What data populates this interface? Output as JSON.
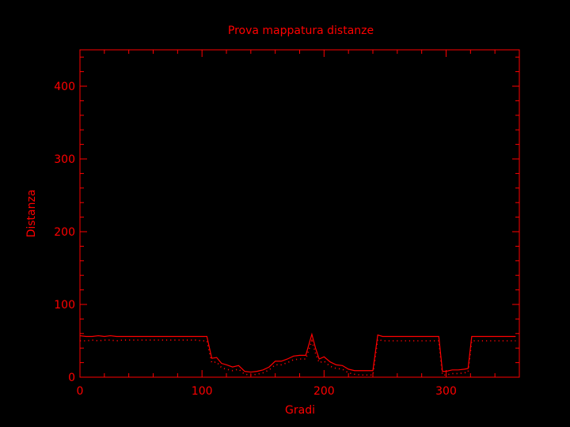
{
  "chart_data": {
    "type": "line",
    "title": "Prova mappatura distanze",
    "xlabel": "Gradi",
    "ylabel": "Distanza",
    "xlim": [
      0,
      360
    ],
    "ylim": [
      0,
      450
    ],
    "xticks": [
      0,
      100,
      200,
      300
    ],
    "yticks": [
      0,
      100,
      200,
      300,
      400
    ],
    "grid": false,
    "color": "#ff0000",
    "series": [
      {
        "style": "solid",
        "x": [
          0,
          5,
          10,
          15,
          20,
          25,
          30,
          35,
          40,
          45,
          50,
          55,
          60,
          65,
          70,
          75,
          80,
          85,
          90,
          95,
          100,
          104,
          108,
          112,
          116,
          120,
          125,
          130,
          135,
          140,
          145,
          150,
          155,
          160,
          165,
          170,
          175,
          180,
          185,
          190,
          193,
          196,
          200,
          205,
          210,
          215,
          220,
          225,
          230,
          235,
          240,
          244,
          248,
          252,
          256,
          260,
          270,
          280,
          290,
          294,
          297,
          300,
          305,
          310,
          315,
          318,
          321,
          325,
          330,
          340,
          350,
          357
        ],
        "y": [
          57,
          56,
          56,
          57,
          56,
          57,
          56,
          56,
          56,
          56,
          56,
          56,
          56,
          56,
          56,
          56,
          56,
          56,
          56,
          56,
          56,
          56,
          26,
          27,
          19,
          17,
          14,
          16,
          8,
          7,
          8,
          10,
          14,
          22,
          22,
          25,
          29,
          30,
          30,
          59,
          40,
          25,
          28,
          21,
          17,
          16,
          11,
          9,
          9,
          9,
          9,
          58,
          56,
          56,
          56,
          56,
          56,
          56,
          56,
          56,
          8,
          8,
          10,
          10,
          11,
          12,
          56,
          56,
          56,
          56,
          56,
          56
        ]
      },
      {
        "style": "dotted",
        "x": [
          0,
          5,
          10,
          15,
          20,
          25,
          30,
          35,
          40,
          45,
          50,
          55,
          60,
          65,
          70,
          75,
          80,
          85,
          90,
          95,
          100,
          104,
          108,
          112,
          116,
          120,
          125,
          130,
          135,
          140,
          145,
          150,
          155,
          160,
          165,
          170,
          175,
          180,
          185,
          190,
          193,
          196,
          200,
          205,
          210,
          215,
          220,
          225,
          230,
          235,
          240,
          244,
          248,
          252,
          256,
          260,
          270,
          280,
          290,
          294,
          297,
          300,
          305,
          310,
          315,
          318,
          321,
          325,
          330,
          340,
          350,
          357
        ],
        "y": [
          50,
          50,
          51,
          50,
          51,
          51,
          50,
          51,
          51,
          51,
          51,
          51,
          51,
          51,
          51,
          51,
          51,
          51,
          51,
          51,
          50,
          50,
          20,
          21,
          13,
          11,
          9,
          11,
          4,
          3,
          4,
          6,
          10,
          17,
          17,
          20,
          24,
          25,
          25,
          50,
          33,
          20,
          22,
          15,
          12,
          11,
          6,
          4,
          3,
          3,
          3,
          52,
          50,
          50,
          50,
          50,
          50,
          50,
          50,
          50,
          3,
          3,
          5,
          5,
          6,
          7,
          50,
          50,
          50,
          50,
          50,
          50
        ]
      }
    ]
  }
}
